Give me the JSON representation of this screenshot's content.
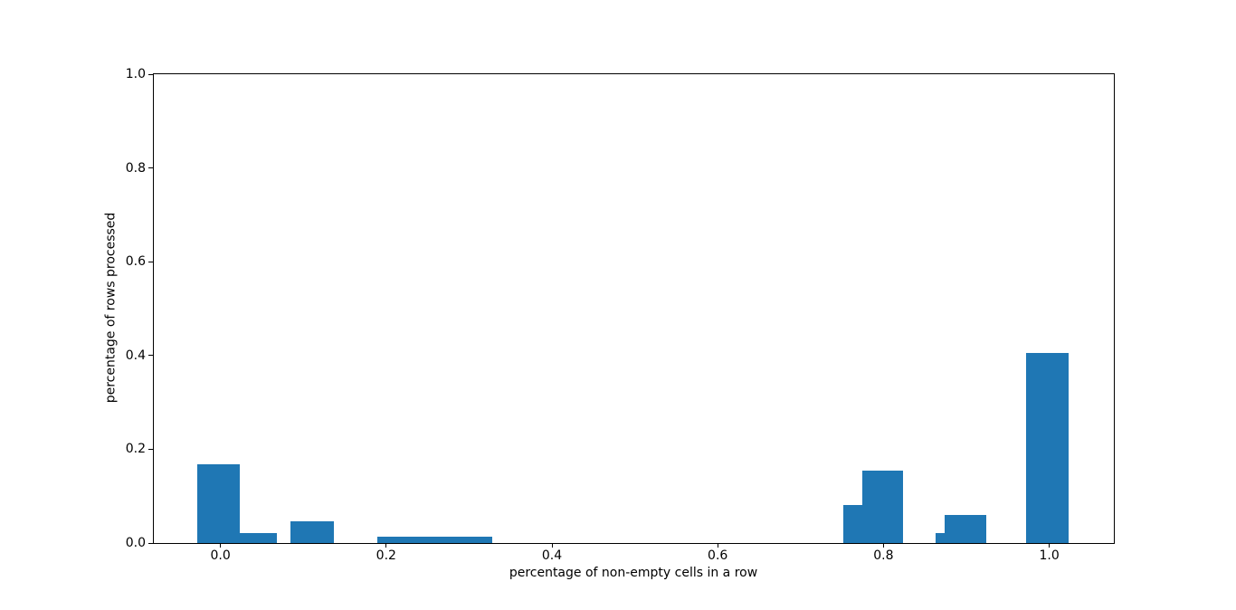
{
  "figure": {
    "background": "#ffffff",
    "spine_color": "#000000",
    "text_color": "#000000"
  },
  "chart_data": {
    "type": "bar",
    "title": "",
    "xlabel": "percentage of non-empty cells in a row",
    "ylabel": "percentage of rows processed",
    "xlim": [
      -0.0803,
      1.0779
    ],
    "ylim": [
      0,
      1.0
    ],
    "grid": false,
    "legend": null,
    "bar_color": "#1f77b4",
    "bar_bin_width": 0.05,
    "xticks": {
      "values": [
        0.0,
        0.2,
        0.4,
        0.6,
        0.8,
        1.0
      ],
      "labels": [
        "0.0",
        "0.2",
        "0.4",
        "0.6",
        "0.8",
        "1.0"
      ]
    },
    "yticks": {
      "values": [
        0.0,
        0.2,
        0.4,
        0.6,
        0.8,
        1.0
      ],
      "labels": [
        "0.0",
        "0.2",
        "0.4",
        "0.6",
        "0.8",
        "1.0"
      ]
    },
    "bars": [
      {
        "x_left": -0.0277,
        "x_right": 0.0233,
        "height": 0.169
      },
      {
        "x_left": 0.0233,
        "x_right": 0.0677,
        "height": 0.022
      },
      {
        "x_left": 0.0845,
        "x_right": 0.1363,
        "height": 0.047
      },
      {
        "x_left": 0.1898,
        "x_right": 0.3285,
        "height": 0.013
      },
      {
        "x_left": 0.7519,
        "x_right": 0.7748,
        "height": 0.082
      },
      {
        "x_left": 0.7748,
        "x_right": 0.8239,
        "height": 0.154
      },
      {
        "x_left": 0.8632,
        "x_right": 0.8741,
        "height": 0.022
      },
      {
        "x_left": 0.8741,
        "x_right": 0.9243,
        "height": 0.059
      },
      {
        "x_left": 0.9724,
        "x_right": 1.0237,
        "height": 0.405
      }
    ]
  }
}
